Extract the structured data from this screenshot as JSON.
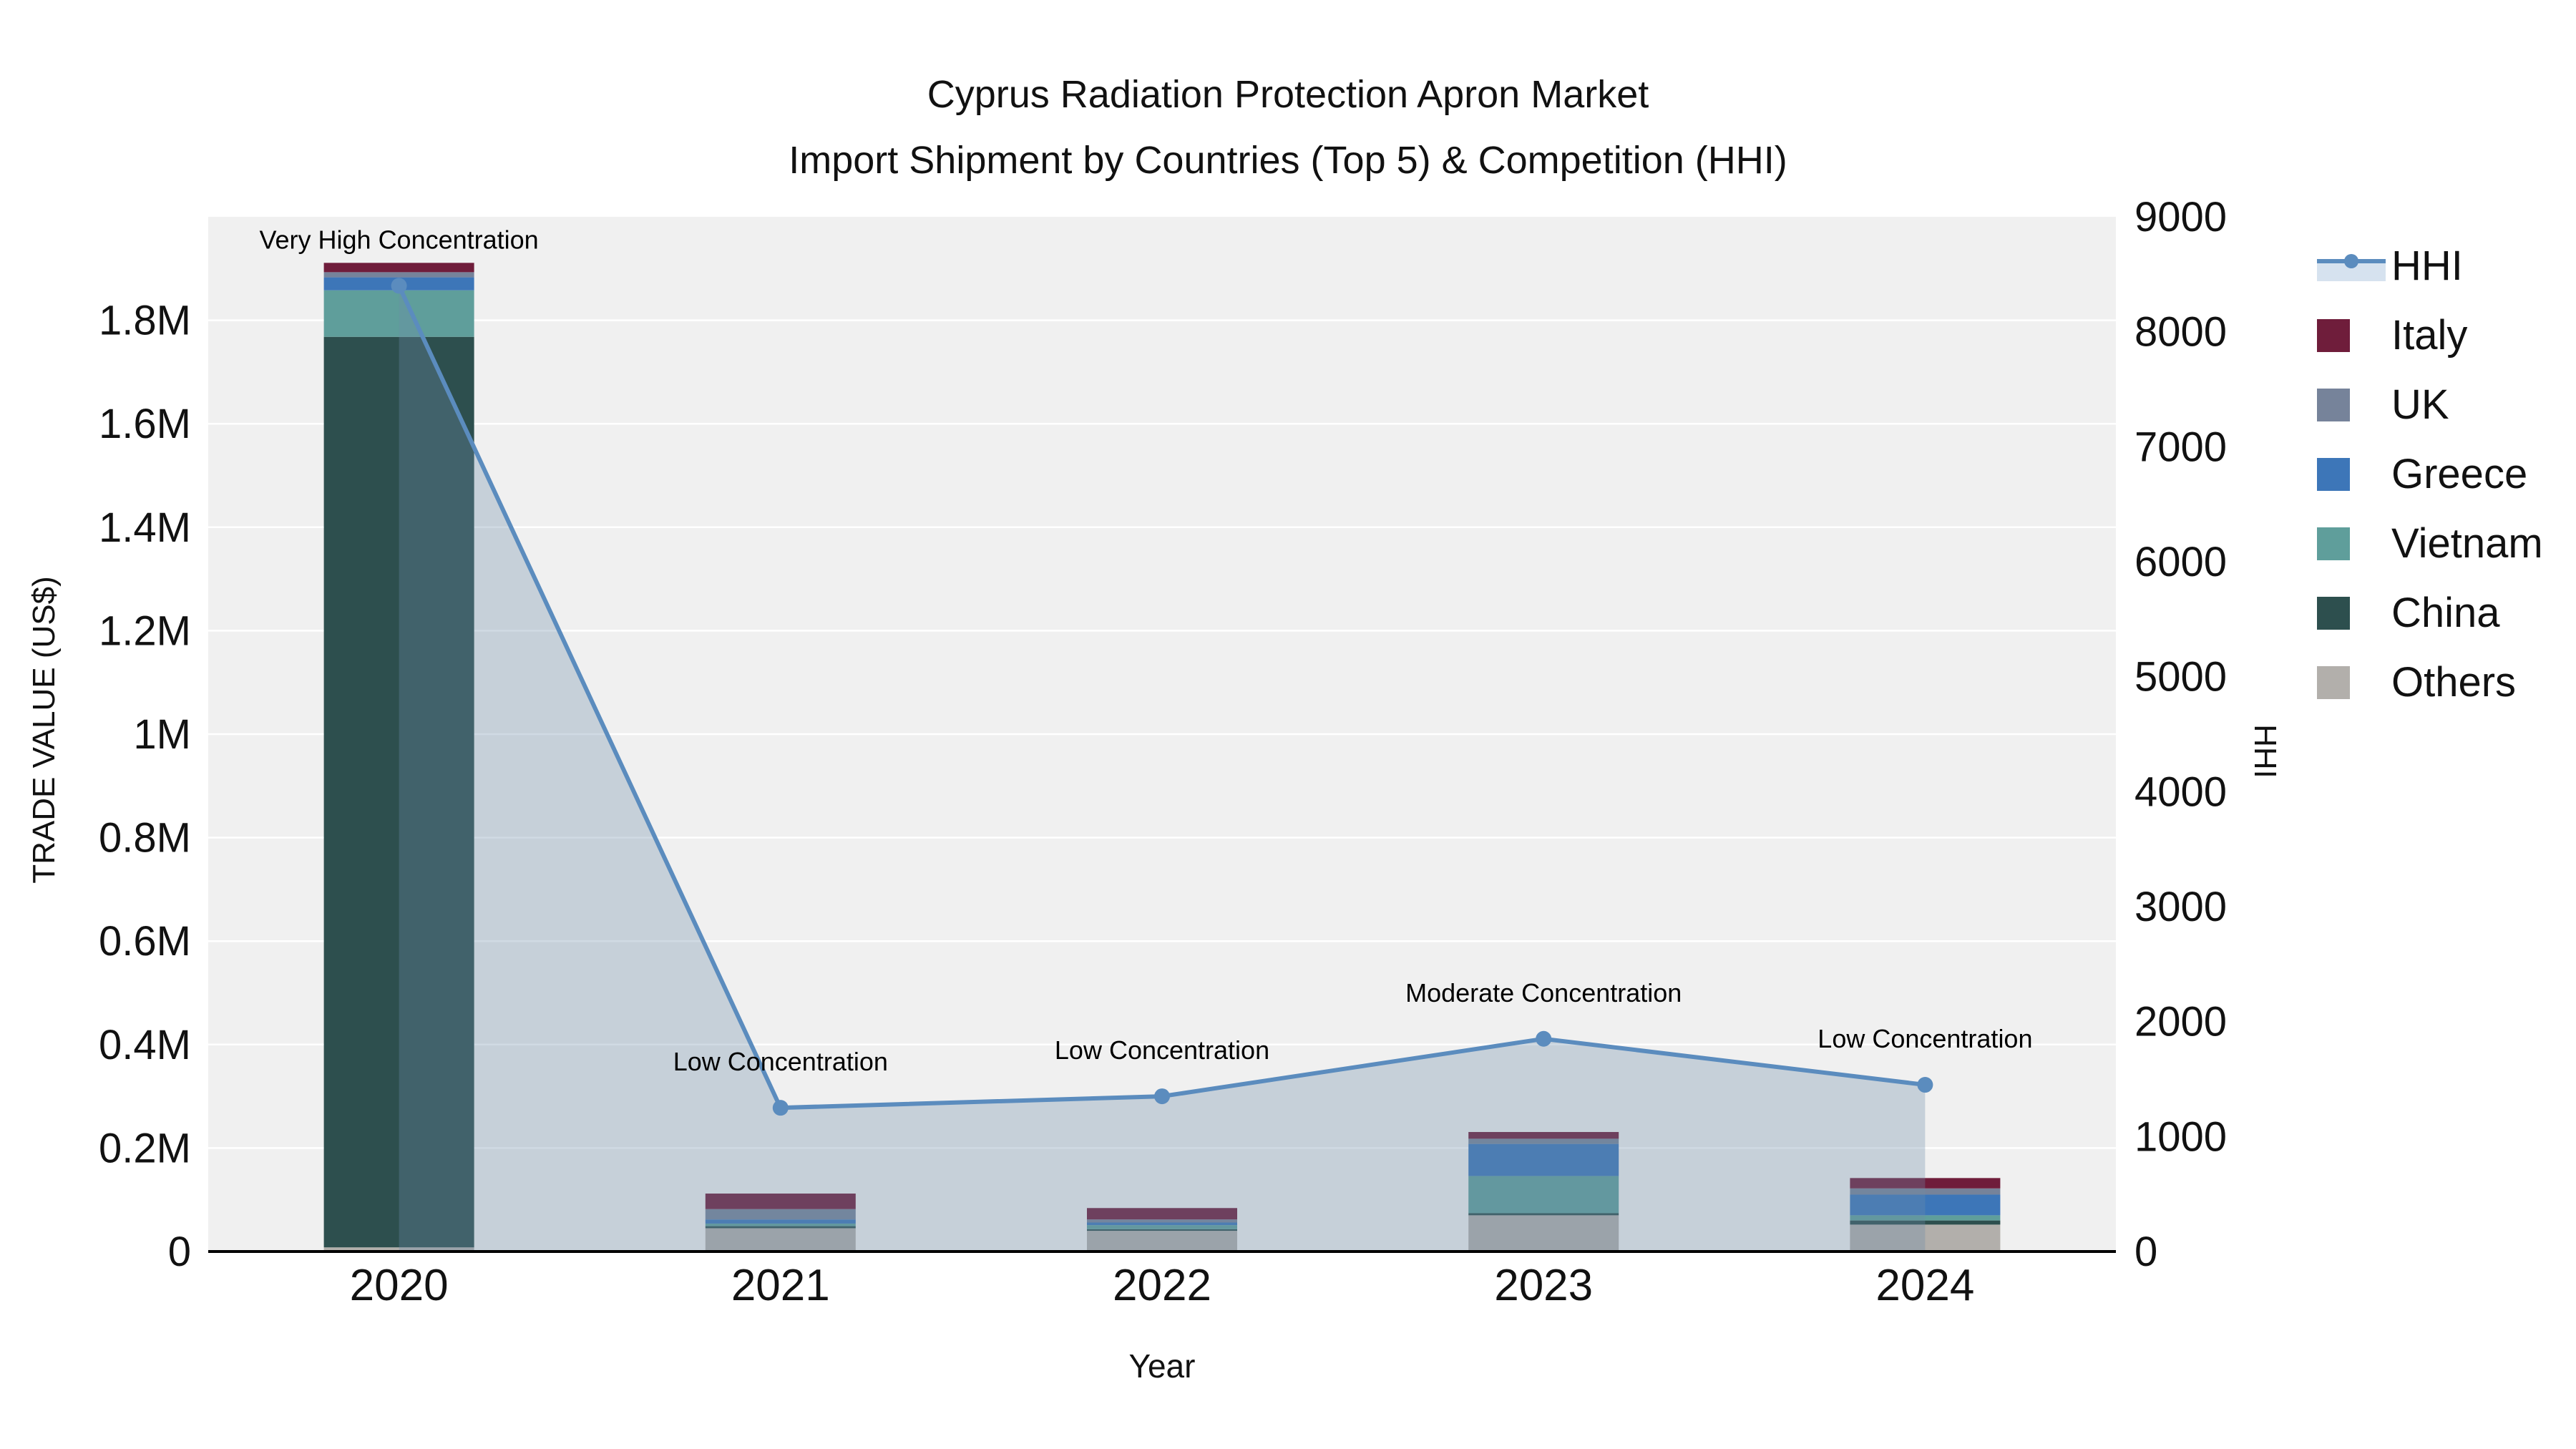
{
  "title": {
    "line1": "Cyprus Radiation Protection Apron Market",
    "line2": "Import Shipment by Countries (Top 5) & Competition (HHI)"
  },
  "axes": {
    "x_title": "Year",
    "y_left_title": "TRADE VALUE (US$)",
    "y_right_title": "HHI"
  },
  "chart_data": {
    "type": "combo",
    "plot_bg": "#f0f0f0",
    "categories": [
      "2020",
      "2021",
      "2022",
      "2023",
      "2024"
    ],
    "bar": {
      "type": "bar",
      "stacked": true,
      "series_bottom_to_top": [
        {
          "name": "Others",
          "color": "#b2afab",
          "values": [
            8000,
            45000,
            40000,
            70000,
            52000
          ]
        },
        {
          "name": "China",
          "color": "#2d4f4e",
          "values": [
            1760000,
            4000,
            3000,
            4000,
            8000
          ]
        },
        {
          "name": "Vietnam",
          "color": "#5f9e9b",
          "values": [
            90000,
            5000,
            8000,
            72000,
            10000
          ]
        },
        {
          "name": "Greece",
          "color": "#3d76b8",
          "values": [
            25000,
            8000,
            5000,
            62000,
            40000
          ]
        },
        {
          "name": "UK",
          "color": "#76839a",
          "values": [
            10000,
            20000,
            6000,
            10000,
            12000
          ]
        },
        {
          "name": "Italy",
          "color": "#6f1d3b",
          "values": [
            18000,
            30000,
            22000,
            13000,
            20000
          ]
        }
      ]
    },
    "line": {
      "type": "line",
      "name": "HHI",
      "color": "#5b8cbe",
      "fill": "tozeroy",
      "fill_color": "rgba(109,139,168,0.32)",
      "values": [
        8400,
        1250,
        1350,
        1850,
        1450
      ]
    },
    "annotations": [
      {
        "x": "2020",
        "text": "Very High Concentration"
      },
      {
        "x": "2021",
        "text": "Low Concentration"
      },
      {
        "x": "2022",
        "text": "Low Concentration"
      },
      {
        "x": "2023",
        "text": "Moderate Concentration"
      },
      {
        "x": "2024",
        "text": "Low Concentration"
      }
    ],
    "y_left": {
      "title": "TRADE VALUE (US$)",
      "max": 2000000,
      "tick_values": [
        0,
        200000,
        400000,
        600000,
        800000,
        1000000,
        1200000,
        1400000,
        1600000,
        1800000
      ],
      "tick_labels": [
        "0",
        "0.2M",
        "0.4M",
        "0.6M",
        "0.8M",
        "1M",
        "1.2M",
        "1.4M",
        "1.6M",
        "1.8M"
      ]
    },
    "y_right": {
      "title": "HHI",
      "max": 9000,
      "tick_values": [
        0,
        1000,
        2000,
        3000,
        4000,
        5000,
        6000,
        7000,
        8000,
        9000
      ],
      "tick_labels": [
        "0",
        "1000",
        "2000",
        "3000",
        "4000",
        "5000",
        "6000",
        "7000",
        "8000",
        "9000"
      ]
    },
    "legend": [
      {
        "label": "HHI",
        "swatch": "line",
        "color": "#5b8cbe"
      },
      {
        "label": "Italy",
        "swatch": "square",
        "color": "#6f1d3b"
      },
      {
        "label": "UK",
        "swatch": "square",
        "color": "#76839a"
      },
      {
        "label": "Greece",
        "swatch": "square",
        "color": "#3d76b8"
      },
      {
        "label": "Vietnam",
        "swatch": "square",
        "color": "#5f9e9b"
      },
      {
        "label": "China",
        "swatch": "square",
        "color": "#2d4f4e"
      },
      {
        "label": "Others",
        "swatch": "square",
        "color": "#b2afab"
      }
    ]
  }
}
